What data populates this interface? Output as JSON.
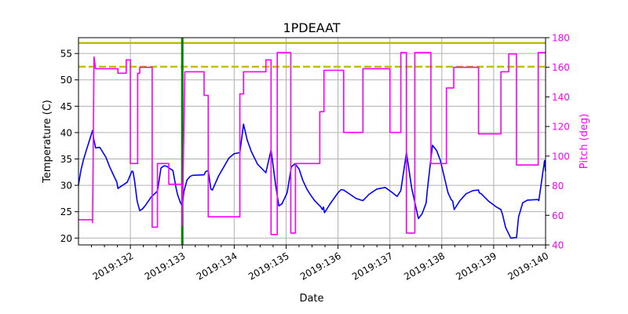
{
  "chart_data": {
    "type": "line",
    "title": "1PDEAAT",
    "xlabel": "Date",
    "ylabel": "Temperature (C)",
    "y2label": "Pitch (deg)",
    "xlim": [
      131.0,
      140.0
    ],
    "ylim": [
      18.7,
      58.0
    ],
    "y2lim": [
      40,
      180
    ],
    "grid": true,
    "x_ticks": [
      132,
      133,
      134,
      135,
      136,
      137,
      138,
      139,
      140
    ],
    "x_tick_labels": [
      "2019:132",
      "2019:133",
      "2019:134",
      "2019:135",
      "2019:136",
      "2019:137",
      "2019:138",
      "2019:139",
      "2019:140"
    ],
    "y_ticks": [
      20,
      25,
      30,
      35,
      40,
      45,
      50,
      55
    ],
    "y2_ticks": [
      40,
      60,
      80,
      100,
      120,
      140,
      160,
      180
    ],
    "colors": {
      "temperature": "#0000ff",
      "pitch": "#ff00ff",
      "limit": "#bfbf00",
      "now_line": "#008000",
      "y2_axis": "#ff00ff"
    },
    "reference_lines": [
      {
        "type": "horizontal",
        "axis": "left",
        "value": 57.0,
        "style": "solid",
        "color": "#bfbf00"
      },
      {
        "type": "horizontal",
        "axis": "left",
        "value": 52.5,
        "style": "dashed",
        "color": "#bfbf00"
      },
      {
        "type": "vertical",
        "value": 133.0,
        "style": "solid",
        "color": "#008000"
      }
    ],
    "series": [
      {
        "axis": "left",
        "color": "#0000ff",
        "points": [
          [
            131.0,
            30.1
          ],
          [
            131.05,
            33.0
          ],
          [
            131.1,
            35.0
          ],
          [
            131.15,
            36.6
          ],
          [
            131.21,
            38.5
          ],
          [
            131.27,
            40.4
          ],
          [
            131.3,
            38.5
          ],
          [
            131.33,
            37.1
          ],
          [
            131.41,
            37.2
          ],
          [
            131.53,
            35.3
          ],
          [
            131.6,
            33.5
          ],
          [
            131.68,
            31.8
          ],
          [
            131.74,
            30.6
          ],
          [
            131.76,
            29.4
          ],
          [
            131.94,
            30.6
          ],
          [
            132.03,
            32.7
          ],
          [
            132.05,
            32.6
          ],
          [
            132.08,
            30.9
          ],
          [
            132.13,
            27.0
          ],
          [
            132.18,
            25.2
          ],
          [
            132.23,
            25.5
          ],
          [
            132.29,
            26.2
          ],
          [
            132.4,
            27.8
          ],
          [
            132.52,
            28.9
          ],
          [
            132.59,
            33.3
          ],
          [
            132.65,
            33.7
          ],
          [
            132.7,
            33.6
          ],
          [
            132.82,
            32.8
          ],
          [
            132.88,
            29.5
          ],
          [
            132.91,
            28.2
          ],
          [
            132.96,
            26.8
          ],
          [
            133.0,
            26.1
          ],
          [
            133.03,
            28.8
          ],
          [
            133.09,
            31.0
          ],
          [
            133.15,
            31.7
          ],
          [
            133.2,
            31.9
          ],
          [
            133.42,
            32.0
          ],
          [
            133.45,
            32.6
          ],
          [
            133.5,
            32.8
          ],
          [
            133.55,
            29.3
          ],
          [
            133.58,
            29.1
          ],
          [
            133.7,
            31.8
          ],
          [
            133.8,
            33.5
          ],
          [
            133.9,
            35.2
          ],
          [
            134.0,
            36.0
          ],
          [
            134.11,
            36.2
          ],
          [
            134.18,
            41.6
          ],
          [
            134.25,
            38.6
          ],
          [
            134.33,
            36.4
          ],
          [
            134.45,
            34.0
          ],
          [
            134.61,
            32.4
          ],
          [
            134.71,
            36.7
          ],
          [
            134.8,
            30.0
          ],
          [
            134.86,
            26.1
          ],
          [
            134.92,
            26.5
          ],
          [
            135.02,
            28.6
          ],
          [
            135.1,
            33.5
          ],
          [
            135.17,
            34.1
          ],
          [
            135.25,
            33.1
          ],
          [
            135.32,
            31.0
          ],
          [
            135.4,
            29.3
          ],
          [
            135.47,
            28.2
          ],
          [
            135.55,
            27.1
          ],
          [
            135.62,
            26.4
          ],
          [
            135.67,
            25.9
          ],
          [
            135.7,
            25.4
          ],
          [
            135.72,
            25.9
          ],
          [
            135.74,
            24.8
          ],
          [
            135.85,
            26.5
          ],
          [
            136.0,
            28.6
          ],
          [
            136.06,
            29.2
          ],
          [
            136.11,
            29.1
          ],
          [
            136.23,
            28.3
          ],
          [
            136.35,
            27.5
          ],
          [
            136.48,
            27.1
          ],
          [
            136.6,
            28.3
          ],
          [
            136.75,
            29.3
          ],
          [
            136.91,
            29.6
          ],
          [
            137.05,
            28.6
          ],
          [
            137.14,
            27.9
          ],
          [
            137.21,
            29.0
          ],
          [
            137.32,
            36.2
          ],
          [
            137.42,
            29.5
          ],
          [
            137.55,
            23.7
          ],
          [
            137.62,
            24.6
          ],
          [
            137.7,
            26.7
          ],
          [
            137.72,
            29.0
          ],
          [
            137.82,
            37.6
          ],
          [
            137.9,
            36.6
          ],
          [
            137.97,
            34.8
          ],
          [
            138.05,
            31.5
          ],
          [
            138.12,
            28.6
          ],
          [
            138.18,
            27.3
          ],
          [
            138.21,
            27.0
          ],
          [
            138.24,
            25.4
          ],
          [
            138.35,
            27.1
          ],
          [
            138.47,
            28.4
          ],
          [
            138.6,
            29.0
          ],
          [
            138.71,
            29.1
          ],
          [
            138.72,
            28.6
          ],
          [
            138.76,
            28.4
          ],
          [
            138.9,
            27.0
          ],
          [
            139.05,
            25.9
          ],
          [
            139.14,
            25.4
          ],
          [
            139.17,
            24.5
          ],
          [
            139.23,
            22.0
          ],
          [
            139.33,
            20.0
          ],
          [
            139.44,
            20.1
          ],
          [
            139.48,
            24.0
          ],
          [
            139.56,
            26.7
          ],
          [
            139.65,
            27.2
          ],
          [
            139.85,
            27.3
          ],
          [
            139.87,
            27.1
          ],
          [
            139.98,
            34.7
          ],
          [
            140.0,
            32.7
          ]
        ]
      },
      {
        "axis": "right",
        "color": "#ff00ff",
        "points": [
          [
            131.0,
            57
          ],
          [
            131.27,
            57
          ],
          [
            131.27,
            55
          ],
          [
            131.3,
            167
          ],
          [
            131.33,
            159
          ],
          [
            131.76,
            159
          ],
          [
            131.76,
            156
          ],
          [
            131.92,
            156
          ],
          [
            131.92,
            165
          ],
          [
            132.0,
            165
          ],
          [
            132.0,
            95
          ],
          [
            132.14,
            95
          ],
          [
            132.14,
            156
          ],
          [
            132.18,
            156
          ],
          [
            132.18,
            160
          ],
          [
            132.42,
            160
          ],
          [
            132.42,
            52
          ],
          [
            132.52,
            52
          ],
          [
            132.52,
            95
          ],
          [
            132.74,
            95
          ],
          [
            132.74,
            81
          ],
          [
            133.0,
            81
          ],
          [
            133.0,
            53
          ],
          [
            133.05,
            157
          ],
          [
            133.42,
            157
          ],
          [
            133.42,
            141
          ],
          [
            133.5,
            141
          ],
          [
            133.5,
            59
          ],
          [
            134.11,
            59
          ],
          [
            134.11,
            142
          ],
          [
            134.18,
            142
          ],
          [
            134.18,
            157
          ],
          [
            134.61,
            157
          ],
          [
            134.61,
            165
          ],
          [
            134.71,
            165
          ],
          [
            134.71,
            47
          ],
          [
            134.83,
            47
          ],
          [
            134.83,
            170
          ],
          [
            135.09,
            170
          ],
          [
            135.09,
            48
          ],
          [
            135.18,
            48
          ],
          [
            135.18,
            95
          ],
          [
            135.65,
            95
          ],
          [
            135.65,
            130
          ],
          [
            135.73,
            130
          ],
          [
            135.73,
            158
          ],
          [
            136.11,
            158
          ],
          [
            136.11,
            116
          ],
          [
            136.48,
            116
          ],
          [
            136.48,
            159
          ],
          [
            137.0,
            159
          ],
          [
            137.0,
            116
          ],
          [
            137.21,
            116
          ],
          [
            137.21,
            170
          ],
          [
            137.32,
            170
          ],
          [
            137.32,
            48
          ],
          [
            137.48,
            48
          ],
          [
            137.48,
            170
          ],
          [
            137.79,
            170
          ],
          [
            137.79,
            95
          ],
          [
            138.09,
            95
          ],
          [
            138.09,
            146
          ],
          [
            138.23,
            146
          ],
          [
            138.23,
            160
          ],
          [
            138.71,
            160
          ],
          [
            138.71,
            115
          ],
          [
            139.14,
            115
          ],
          [
            139.14,
            157
          ],
          [
            139.29,
            157
          ],
          [
            139.29,
            169
          ],
          [
            139.44,
            169
          ],
          [
            139.44,
            94
          ],
          [
            139.86,
            94
          ],
          [
            139.86,
            170
          ],
          [
            140.0,
            170
          ]
        ]
      }
    ]
  }
}
